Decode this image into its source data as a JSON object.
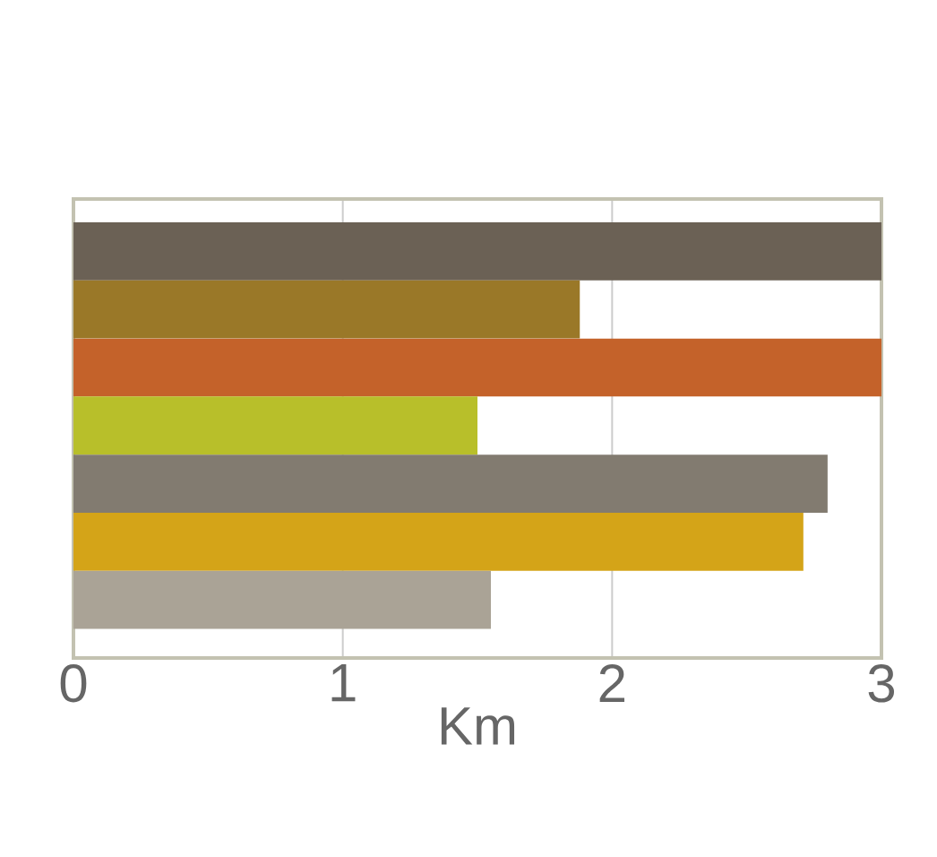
{
  "chart_data": {
    "type": "bar",
    "orientation": "horizontal",
    "xlabel": "Km",
    "categories": [
      null,
      null,
      null,
      null,
      null,
      null,
      null
    ],
    "values": [
      3.0,
      1.88,
      3.0,
      1.5,
      2.8,
      2.71,
      1.55
    ],
    "colors": [
      "#6b6155",
      "#9a7828",
      "#c4622a",
      "#b8bf2a",
      "#827b70",
      "#d4a418",
      "#aaa396"
    ],
    "xlim": [
      0,
      3
    ],
    "xticks": [
      0,
      1,
      2,
      3
    ],
    "grid": "x",
    "tick_labels": "x"
  }
}
